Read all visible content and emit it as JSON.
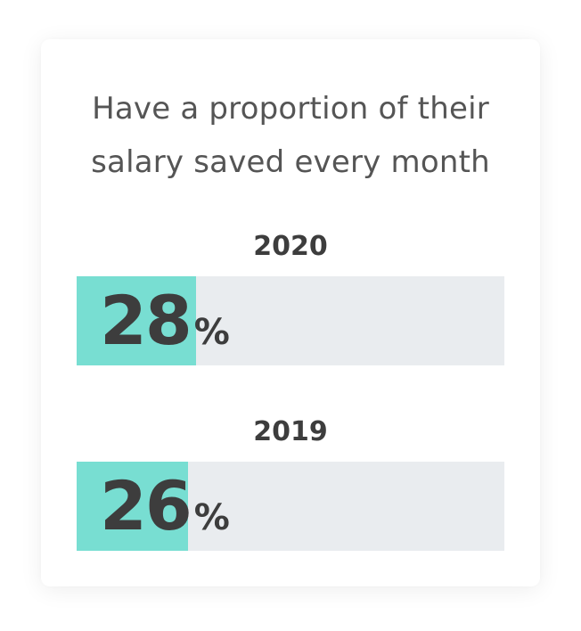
{
  "headline": {
    "line1": "Have a proportion of their",
    "line2": "salary saved every month"
  },
  "chart_data": {
    "type": "bar",
    "categories": [
      "2020",
      "2019"
    ],
    "values": [
      28,
      26
    ],
    "unit": "%",
    "ylim": [
      0,
      100
    ],
    "fill_color": "#78ded2",
    "track_color": "#e9ecef",
    "text_color": "#3d3d3d"
  },
  "stats": [
    {
      "year": "2020",
      "number": "28",
      "suffix": "%"
    },
    {
      "year": "2019",
      "number": "26",
      "suffix": "%"
    }
  ]
}
